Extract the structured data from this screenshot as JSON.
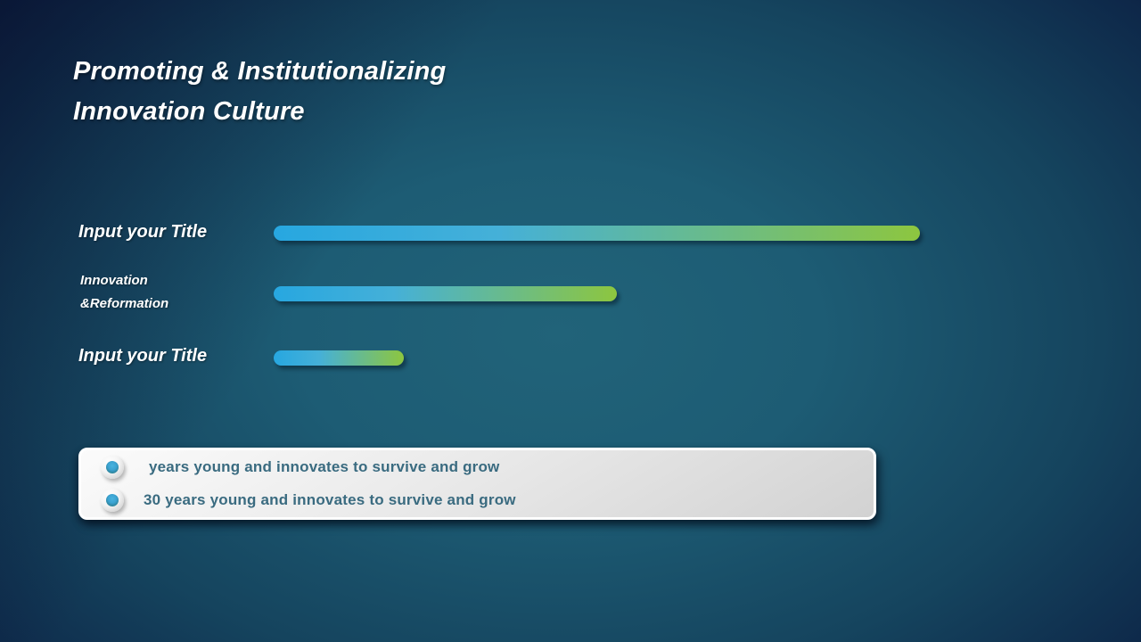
{
  "slide": {
    "title": "Promoting & Institutionalizing\nInnovation Culture"
  },
  "bars": [
    {
      "label": "Input your Title"
    },
    {
      "label": "Innovation\n&Reformation"
    },
    {
      "label": "Input your Title"
    }
  ],
  "footer": {
    "items": [
      {
        "text": "years young and innovates to survive and grow"
      },
      {
        "text": "30 years young and innovates to survive and grow"
      }
    ]
  },
  "colors": {
    "background_center": "#216379",
    "background_edge": "#0C1C3C",
    "bar_gradient_start": "#27A7E0",
    "bar_gradient_end": "#8DC63F",
    "title_text": "#FFFFFF",
    "footer_text": "#3A6B80",
    "footer_box_border": "#FFFFFF",
    "footer_box_fill": "#E6E6E6"
  },
  "chart_data": {
    "type": "bar",
    "orientation": "horizontal",
    "title": "Promoting & Institutionalizing Innovation Culture",
    "categories": [
      "Input your Title",
      "Innovation &Reformation",
      "Input your Title"
    ],
    "values": [
      100,
      53.1,
      20.1
    ],
    "value_note": "percent of longest bar; no axis or data labels shown on slide",
    "xlabel": "",
    "ylabel": "",
    "legend": false,
    "grid": false
  }
}
